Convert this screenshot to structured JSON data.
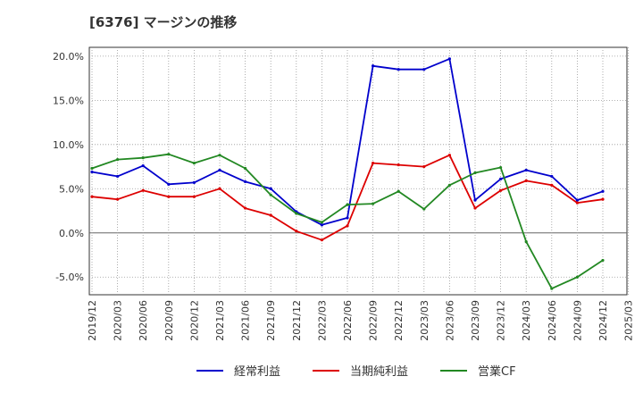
{
  "chart_data": {
    "type": "line",
    "title": "[6376]  マージンの推移",
    "xlabel": "",
    "ylabel": "",
    "ylim": [
      -7,
      21
    ],
    "yticks": [
      -5,
      0,
      5,
      10,
      15,
      20
    ],
    "ytick_labels": [
      "-5.0%",
      "0.0%",
      "5.0%",
      "10.0%",
      "15.0%",
      "20.0%"
    ],
    "grid": true,
    "legend_position": "bottom",
    "x": [
      "2019/12",
      "2020/03",
      "2020/06",
      "2020/09",
      "2020/12",
      "2021/03",
      "2021/06",
      "2021/09",
      "2021/12",
      "2022/03",
      "2022/06",
      "2022/09",
      "2022/12",
      "2023/03",
      "2023/06",
      "2023/09",
      "2023/12",
      "2024/03",
      "2024/06",
      "2024/09",
      "2024/12",
      "2025/03"
    ],
    "series": [
      {
        "name": "経常利益",
        "color": "#0000cc",
        "values": [
          6.9,
          6.4,
          7.6,
          5.5,
          5.7,
          7.1,
          5.8,
          5.0,
          2.4,
          0.9,
          1.7,
          18.9,
          18.5,
          18.5,
          19.7,
          3.7,
          6.1,
          7.1,
          6.4,
          3.7,
          4.7,
          null
        ]
      },
      {
        "name": "当期純利益",
        "color": "#dd0000",
        "values": [
          4.1,
          3.8,
          4.8,
          4.1,
          4.1,
          5.0,
          2.8,
          2.0,
          0.2,
          -0.8,
          0.8,
          7.9,
          7.7,
          7.5,
          8.8,
          2.8,
          4.8,
          5.9,
          5.4,
          3.4,
          3.8,
          null
        ]
      },
      {
        "name": "営業CF",
        "color": "#228822",
        "values": [
          7.3,
          8.3,
          8.5,
          8.9,
          7.9,
          8.8,
          7.3,
          4.3,
          2.2,
          1.2,
          3.2,
          3.3,
          4.7,
          2.7,
          5.4,
          6.8,
          7.4,
          -1.0,
          -6.3,
          -5.0,
          -3.1,
          null
        ]
      }
    ]
  }
}
